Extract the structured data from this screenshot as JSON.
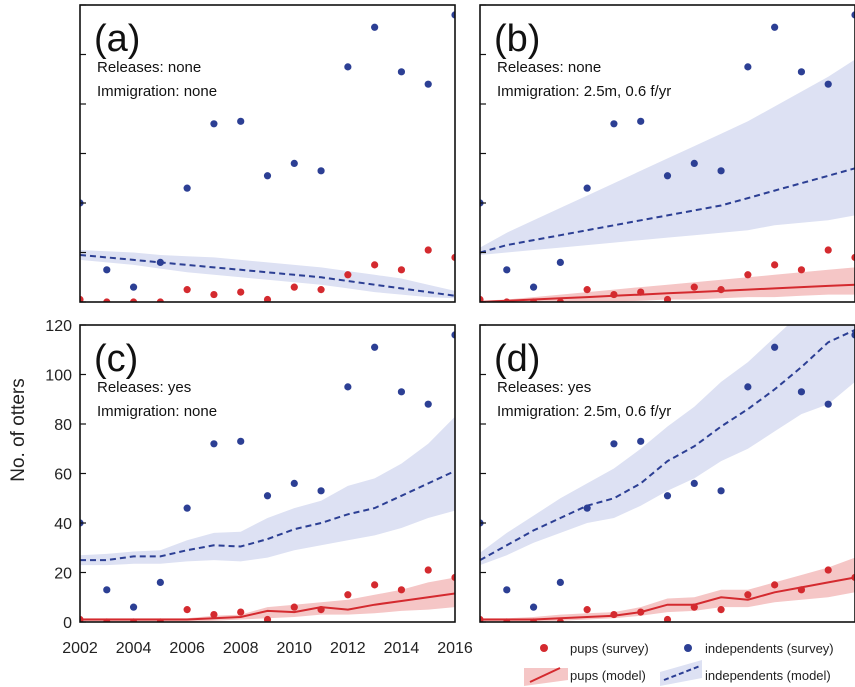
{
  "figure": {
    "ylabel": "No. of otters",
    "xticks": [
      "2002",
      "2004",
      "2006",
      "2008",
      "2010",
      "2012",
      "2014",
      "2016"
    ],
    "yticks": [
      "0",
      "20",
      "40",
      "60",
      "80",
      "100",
      "120"
    ]
  },
  "legend": {
    "pups_survey": "pups (survey)",
    "independents_survey": "independents (survey)",
    "pups_model": "pups (model)",
    "independents_model": "independents (model)"
  },
  "colors": {
    "pups": "#d42a2f",
    "pups_band": "#f5c6c6",
    "independents": "#2c3f94",
    "independents_band": "#dde1f3"
  },
  "chart_data": [
    {
      "type": "scatter",
      "panel_label": "(a)",
      "releases": "Releases: none",
      "immigration": "Immigration: none",
      "xlim": [
        2002,
        2016
      ],
      "ylim": [
        0,
        120
      ],
      "survey": {
        "years": [
          2002,
          2003,
          2004,
          2005,
          2006,
          2007,
          2008,
          2009,
          2010,
          2011,
          2012,
          2013,
          2014,
          2015,
          2016
        ],
        "pups": [
          1,
          0,
          0,
          0,
          5,
          3,
          4,
          1,
          6,
          5,
          11,
          15,
          13,
          21,
          18
        ],
        "independents": [
          40,
          13,
          6,
          16,
          46,
          72,
          73,
          51,
          56,
          53,
          95,
          111,
          93,
          88,
          116
        ]
      },
      "model": {
        "years": [
          2002,
          2003,
          2004,
          2005,
          2006,
          2007,
          2008,
          2009,
          2010,
          2011,
          2012,
          2013,
          2014,
          2015,
          2016
        ],
        "independents_mean": [
          19,
          18,
          17,
          16,
          15,
          14,
          13,
          12,
          11,
          10,
          8.5,
          7,
          5.5,
          4,
          2.5
        ],
        "independents_lower": [
          17,
          16,
          15,
          13.5,
          12,
          11,
          10,
          9,
          8,
          7,
          5.5,
          4,
          3,
          2,
          1.5
        ],
        "independents_upper": [
          21,
          20.5,
          20,
          19,
          18.5,
          18,
          17,
          16,
          15,
          14,
          12.5,
          11,
          9.5,
          7,
          4.5
        ]
      }
    },
    {
      "type": "scatter",
      "panel_label": "(b)",
      "releases": "Releases: none",
      "immigration": "Immigration: 2.5m, 0.6 f/yr",
      "xlim": [
        2002,
        2016
      ],
      "ylim": [
        0,
        120
      ],
      "survey": {
        "years": [
          2002,
          2003,
          2004,
          2005,
          2006,
          2007,
          2008,
          2009,
          2010,
          2011,
          2012,
          2013,
          2014,
          2015,
          2016
        ],
        "pups": [
          1,
          0,
          0,
          0,
          5,
          3,
          4,
          1,
          6,
          5,
          11,
          15,
          13,
          21,
          18
        ],
        "independents": [
          40,
          13,
          6,
          16,
          46,
          72,
          73,
          51,
          56,
          53,
          95,
          111,
          93,
          88,
          116
        ]
      },
      "model": {
        "years": [
          2002,
          2003,
          2004,
          2005,
          2006,
          2007,
          2008,
          2009,
          2010,
          2011,
          2012,
          2013,
          2014,
          2015,
          2016
        ],
        "independents_mean": [
          20,
          23,
          25,
          27,
          29,
          31,
          33,
          35,
          37,
          39,
          42,
          45,
          48,
          51,
          54
        ],
        "independents_lower": [
          19,
          20,
          21,
          22,
          23,
          24,
          25,
          26,
          27,
          28,
          29,
          31,
          32,
          33,
          35
        ],
        "independents_upper": [
          22,
          28,
          33,
          38,
          43,
          48,
          53,
          58,
          63,
          68,
          73,
          79,
          85,
          91,
          98
        ],
        "pups_mean": [
          0,
          0.5,
          1,
          1.5,
          2,
          2.5,
          3,
          3.5,
          4,
          4.5,
          5,
          5.5,
          6,
          6.5,
          7
        ],
        "pups_lower": [
          0,
          0,
          0,
          0,
          0,
          0,
          0.5,
          1,
          1,
          1.5,
          2,
          2,
          2.5,
          3,
          3
        ],
        "pups_upper": [
          0.5,
          1,
          2,
          3,
          4,
          5,
          6,
          7,
          8,
          9,
          10,
          11,
          12,
          13,
          14
        ]
      }
    },
    {
      "type": "scatter",
      "panel_label": "(c)",
      "releases": "Releases: yes",
      "immigration": "Immigration: none",
      "xlim": [
        2002,
        2016
      ],
      "ylim": [
        0,
        120
      ],
      "survey": {
        "years": [
          2002,
          2003,
          2004,
          2005,
          2006,
          2007,
          2008,
          2009,
          2010,
          2011,
          2012,
          2013,
          2014,
          2015,
          2016
        ],
        "pups": [
          1,
          0,
          0,
          0,
          5,
          3,
          4,
          1,
          6,
          5,
          11,
          15,
          13,
          21,
          18
        ],
        "independents": [
          40,
          13,
          6,
          16,
          46,
          72,
          73,
          51,
          56,
          53,
          95,
          111,
          93,
          88,
          116
        ]
      },
      "model": {
        "years": [
          2002,
          2003,
          2004,
          2005,
          2006,
          2007,
          2008,
          2009,
          2010,
          2011,
          2012,
          2013,
          2014,
          2015,
          2016
        ],
        "independents_mean": [
          25,
          25,
          26.5,
          26.5,
          29,
          31,
          30.5,
          33.5,
          37.5,
          40,
          43.5,
          46,
          51,
          56,
          61
        ],
        "independents_lower": [
          23,
          23,
          23.5,
          23.5,
          24.5,
          25,
          24.5,
          26,
          29,
          31,
          33,
          35,
          38,
          42,
          45
        ],
        "independents_upper": [
          27,
          27.5,
          28.5,
          29,
          33,
          36,
          36.5,
          42,
          46,
          49,
          55,
          58,
          64,
          72,
          83
        ],
        "pups_mean": [
          1,
          1,
          1,
          1,
          1,
          1.5,
          2,
          4.5,
          4,
          6,
          5,
          7,
          8.5,
          10,
          11.5
        ],
        "pups_lower": [
          0,
          0,
          0,
          0,
          0,
          0.5,
          1,
          1.5,
          2,
          3,
          3,
          3.5,
          4.5,
          5,
          6
        ],
        "pups_upper": [
          1.5,
          1.5,
          1.5,
          1.5,
          1.5,
          2.5,
          3,
          6,
          7,
          8,
          9,
          11,
          13,
          16,
          18
        ]
      }
    },
    {
      "type": "scatter",
      "panel_label": "(d)",
      "releases": "Releases: yes",
      "immigration": "Immigration: 2.5m, 0.6 f/yr",
      "xlim": [
        2002,
        2016
      ],
      "ylim": [
        0,
        120
      ],
      "survey": {
        "years": [
          2002,
          2003,
          2004,
          2005,
          2006,
          2007,
          2008,
          2009,
          2010,
          2011,
          2012,
          2013,
          2014,
          2015,
          2016
        ],
        "pups": [
          1,
          0,
          0,
          0,
          5,
          3,
          4,
          1,
          6,
          5,
          11,
          15,
          13,
          21,
          18
        ],
        "independents": [
          40,
          13,
          6,
          16,
          46,
          72,
          73,
          51,
          56,
          53,
          95,
          111,
          93,
          88,
          116
        ]
      },
      "model": {
        "years": [
          2002,
          2003,
          2004,
          2005,
          2006,
          2007,
          2008,
          2009,
          2010,
          2011,
          2012,
          2013,
          2014,
          2015,
          2016
        ],
        "independents_mean": [
          25,
          31,
          37,
          42,
          47,
          50,
          56,
          65,
          71,
          79,
          86,
          94,
          103,
          113,
          118
        ],
        "independents_lower": [
          23,
          27,
          32,
          36,
          40,
          42,
          47,
          53,
          58,
          65,
          70,
          77,
          84,
          88,
          97
        ],
        "independents_upper": [
          28,
          36,
          43,
          50,
          56,
          62,
          70,
          79,
          87,
          97,
          105,
          115,
          125,
          135,
          145
        ],
        "pups_mean": [
          1,
          1,
          1,
          1.5,
          2,
          2.5,
          4,
          7,
          7,
          10,
          9,
          12,
          14,
          16,
          18
        ],
        "pups_lower": [
          0,
          0,
          0,
          0.5,
          1,
          1.5,
          2.5,
          4,
          4.5,
          6,
          6,
          8,
          9,
          10,
          12
        ],
        "pups_upper": [
          1.5,
          1.5,
          2,
          3,
          3.5,
          4,
          6,
          9.5,
          10,
          13,
          13,
          16,
          19,
          22,
          26
        ]
      }
    }
  ]
}
